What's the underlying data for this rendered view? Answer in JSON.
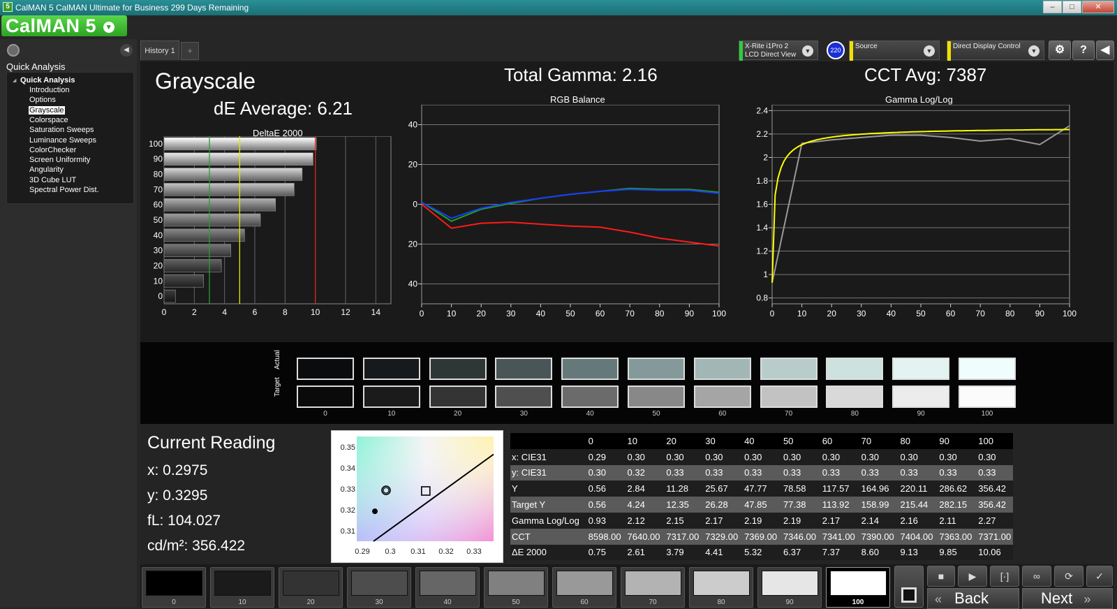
{
  "window": {
    "title": "CalMAN 5 CalMAN Ultimate for Business 299 Days Remaining",
    "minimize": "–",
    "maximize": "□",
    "close": "✕"
  },
  "logo": {
    "text": "CalMAN 5",
    "dropdown": "▾"
  },
  "sidebar": {
    "heading": "Quick Analysis",
    "tree_root": "Quick Analysis",
    "items": [
      "Introduction",
      "Options",
      "Grayscale",
      "Colorspace",
      "Saturation Sweeps",
      "Luminance Sweeps",
      "ColorChecker",
      "Screen Uniformity",
      "Angularity",
      "3D Cube LUT",
      "Spectral Power Dist."
    ],
    "selected": "Grayscale",
    "collapse": "◀"
  },
  "tabs": {
    "history": "History 1",
    "add": "+"
  },
  "toolbar": {
    "meter_line1": "X-Rite i1Pro 2",
    "meter_line2": "LCD Direct View",
    "meter_badge": "220",
    "source": "Source",
    "display": "Direct Display Control",
    "settings_icon": "gear-icon",
    "help": "?",
    "collapse": "◀",
    "colors": {
      "meter": "#2ecc40",
      "source": "#f0e000",
      "display": "#f0e000"
    }
  },
  "summary": {
    "title": "Grayscale",
    "de_average": "dE Average: 6.21",
    "total_gamma": "Total Gamma: 2.16",
    "cct_avg": "CCT Avg: 7387"
  },
  "chart_data": [
    {
      "type": "bar",
      "title": "DeltaE 2000",
      "categories": [
        "100",
        "90",
        "80",
        "70",
        "60",
        "50",
        "40",
        "30",
        "20",
        "10",
        "0"
      ],
      "values": [
        10.06,
        9.85,
        9.13,
        8.6,
        7.37,
        6.37,
        5.32,
        4.41,
        3.79,
        2.61,
        0.75
      ],
      "xlim": [
        0,
        15
      ],
      "xticks": [
        "0",
        "2",
        "4",
        "6",
        "8",
        "10",
        "12",
        "14"
      ],
      "reference_lines": [
        {
          "x": 3,
          "color": "#2e9e2e"
        },
        {
          "x": 5,
          "color": "#e8e800"
        },
        {
          "x": 10,
          "color": "#e02020"
        }
      ],
      "orientation": "horizontal",
      "grid": true
    },
    {
      "type": "line",
      "title": "RGB Balance",
      "x": [
        0,
        10,
        20,
        30,
        40,
        50,
        60,
        70,
        80,
        90,
        100
      ],
      "xticks": [
        "0",
        "10",
        "20",
        "30",
        "40",
        "50",
        "60",
        "70",
        "80",
        "90",
        "100"
      ],
      "yticks": [
        "40",
        "20",
        "0",
        "-20",
        "-40"
      ],
      "ylim": [
        -50,
        50
      ],
      "series": [
        {
          "color": "#ff1a1a",
          "values": [
            0,
            -12,
            -9.5,
            -9,
            -10,
            -11,
            -11.5,
            -14,
            -17,
            -19,
            -21
          ]
        },
        {
          "color": "#1fa01f",
          "values": [
            1,
            -8.5,
            -2.5,
            0.5,
            3,
            5,
            6.5,
            8,
            7.5,
            7.5,
            6
          ]
        },
        {
          "color": "#1a3cff",
          "values": [
            1,
            -7,
            -2,
            1,
            3,
            5,
            6.5,
            7.5,
            7,
            7,
            5.5
          ]
        }
      ],
      "grid": true
    },
    {
      "type": "line",
      "title": "Gamma Log/Log",
      "x": [
        0,
        10,
        20,
        30,
        40,
        50,
        60,
        70,
        80,
        90,
        100
      ],
      "xticks": [
        "0",
        "10",
        "20",
        "30",
        "40",
        "50",
        "60",
        "70",
        "80",
        "90",
        "100"
      ],
      "yticks": [
        "2.4",
        "2.2",
        "2",
        "1.8",
        "1.6",
        "1.4",
        "1.2",
        "1",
        "0.8"
      ],
      "ylim": [
        0.75,
        2.45
      ],
      "series": [
        {
          "color": "#999999",
          "values": [
            0.93,
            2.12,
            2.15,
            2.17,
            2.19,
            2.19,
            2.17,
            2.14,
            2.16,
            2.11,
            2.27
          ]
        },
        {
          "color": "#ffff00",
          "values": [
            0.93,
            1.9,
            2.05,
            2.12,
            2.16,
            2.19,
            2.21,
            2.23,
            2.24,
            2.25,
            2.26
          ]
        }
      ],
      "grid": true
    }
  ],
  "swatches": {
    "actual_label": "Actual",
    "target_label": "Target",
    "labels": [
      "0",
      "10",
      "20",
      "30",
      "40",
      "50",
      "60",
      "70",
      "80",
      "90",
      "100"
    ],
    "actual_colors": [
      "#0b0c0d",
      "#171a1c",
      "#2f3736",
      "#4a5557",
      "#66797a",
      "#83999a",
      "#a2b6b6",
      "#b8cccb",
      "#cde1df",
      "#e3f3f1",
      "#f0fdfd"
    ],
    "target_colors": [
      "#0a0a0a",
      "#1b1b1b",
      "#343434",
      "#4f4f4f",
      "#6b6b6b",
      "#888888",
      "#a5a5a5",
      "#c2c2c2",
      "#d9d9d9",
      "#ececec",
      "#fbfbfb"
    ]
  },
  "current_reading": {
    "title": "Current Reading",
    "x": "x: 0.2975",
    "y": "y: 0.3295",
    "fl": "fL: 104.027",
    "cdm2": "cd/m²: 356.422"
  },
  "cie_plot": {
    "xticks": [
      "0.29",
      "0.3",
      "0.31",
      "0.32",
      "0.33"
    ],
    "yticks": [
      "0.35",
      "0.34",
      "0.33",
      "0.32",
      "0.31"
    ]
  },
  "data_table": {
    "headers": [
      "",
      "0",
      "10",
      "20",
      "30",
      "40",
      "50",
      "60",
      "70",
      "80",
      "90",
      "100"
    ],
    "rows": [
      [
        "x: CIE31",
        "0.29",
        "0.30",
        "0.30",
        "0.30",
        "0.30",
        "0.30",
        "0.30",
        "0.30",
        "0.30",
        "0.30",
        "0.30"
      ],
      [
        "y: CIE31",
        "0.30",
        "0.32",
        "0.33",
        "0.33",
        "0.33",
        "0.33",
        "0.33",
        "0.33",
        "0.33",
        "0.33",
        "0.33"
      ],
      [
        "Y",
        "0.56",
        "2.84",
        "11.28",
        "25.67",
        "47.77",
        "78.58",
        "117.57",
        "164.96",
        "220.11",
        "286.62",
        "356.42"
      ],
      [
        "Target Y",
        "0.56",
        "4.24",
        "12.35",
        "26.28",
        "47.85",
        "77.38",
        "113.92",
        "158.99",
        "215.44",
        "282.15",
        "356.42"
      ],
      [
        "Gamma Log/Log",
        "0.93",
        "2.12",
        "2.15",
        "2.17",
        "2.19",
        "2.19",
        "2.17",
        "2.14",
        "2.16",
        "2.11",
        "2.27"
      ],
      [
        "CCT",
        "8598.00",
        "7640.00",
        "7317.00",
        "7329.00",
        "7369.00",
        "7346.00",
        "7341.00",
        "7390.00",
        "7404.00",
        "7363.00",
        "7371.00"
      ],
      [
        "ΔE 2000",
        "0.75",
        "2.61",
        "3.79",
        "4.41",
        "5.32",
        "6.37",
        "7.37",
        "8.60",
        "9.13",
        "9.85",
        "10.06"
      ]
    ]
  },
  "bottom": {
    "patch_labels": [
      "0",
      "10",
      "20",
      "30",
      "40",
      "50",
      "60",
      "70",
      "80",
      "90",
      "100"
    ],
    "patch_colors": [
      "#000000",
      "#1b1b1b",
      "#333333",
      "#4d4d4d",
      "#666666",
      "#808080",
      "#999999",
      "#b3b3b3",
      "#cccccc",
      "#e6e6e6",
      "#ffffff"
    ],
    "selected": "100",
    "back": "Back",
    "next": "Next",
    "back_arrows": "«",
    "next_arrows": "»"
  }
}
